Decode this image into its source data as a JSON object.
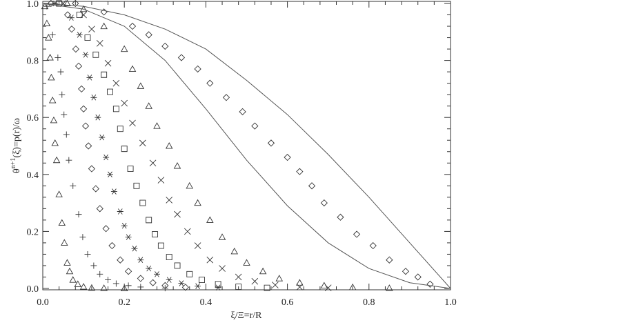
{
  "chart_data": {
    "type": "scatter",
    "xlabel": "ξ/Ξ=r/R",
    "ylabel": [
      "θ",
      "n+1",
      "(ξ)=p(r)/ω"
    ],
    "xlim": [
      0,
      1
    ],
    "ylim": [
      0,
      1
    ],
    "xticks": [
      {
        "value": 0,
        "label": "0.0"
      },
      {
        "value": 0.2,
        "label": "0.2"
      },
      {
        "value": 0.4,
        "label": "0.4"
      },
      {
        "value": 0.6,
        "label": "0.6"
      },
      {
        "value": 0.8,
        "label": "0.8"
      },
      {
        "value": 1,
        "label": "1.0"
      }
    ],
    "yticks": [
      {
        "value": 0,
        "label": "0.0"
      },
      {
        "value": 0.2,
        "label": "0.2"
      },
      {
        "value": 0.4,
        "label": "0.4"
      },
      {
        "value": 0.6,
        "label": "0.6"
      },
      {
        "value": 0.8,
        "label": "0.8"
      },
      {
        "value": 1,
        "label": "1.0"
      }
    ],
    "minor_per_major": 4,
    "series": [
      {
        "marker": "triangle",
        "color": "#333333",
        "x": [
          0.005,
          0.01,
          0.014,
          0.018,
          0.021,
          0.024,
          0.027,
          0.03,
          0.034,
          0.04,
          0.047,
          0.053,
          0.06,
          0.066,
          0.074,
          0.086,
          0.1,
          0.12,
          0.15,
          0.2
        ],
        "values": [
          0.99,
          0.93,
          0.88,
          0.81,
          0.74,
          0.66,
          0.59,
          0.51,
          0.45,
          0.33,
          0.23,
          0.16,
          0.09,
          0.06,
          0.03,
          0.015,
          0.006,
          0.002,
          0.001,
          0
        ]
      },
      {
        "marker": "plus",
        "color": "#333333",
        "x": [
          0.01,
          0.024,
          0.037,
          0.044,
          0.047,
          0.052,
          0.058,
          0.064,
          0.074,
          0.088,
          0.098,
          0.11,
          0.125,
          0.14,
          0.16,
          0.18,
          0.21,
          0.24,
          0.3
        ],
        "values": [
          0.99,
          0.89,
          0.81,
          0.76,
          0.68,
          0.61,
          0.54,
          0.45,
          0.36,
          0.26,
          0.18,
          0.12,
          0.08,
          0.05,
          0.03,
          0.017,
          0.01,
          0.005,
          0.001
        ]
      },
      {
        "marker": "diamond",
        "color": "#333333",
        "x": [
          0.02,
          0.061,
          0.071,
          0.081,
          0.088,
          0.095,
          0.1,
          0.105,
          0.112,
          0.12,
          0.13,
          0.14,
          0.155,
          0.17,
          0.19,
          0.21,
          0.24,
          0.27,
          0.3,
          0.35
        ],
        "values": [
          1.0,
          0.96,
          0.91,
          0.84,
          0.78,
          0.7,
          0.63,
          0.57,
          0.5,
          0.42,
          0.35,
          0.28,
          0.21,
          0.15,
          0.1,
          0.06,
          0.035,
          0.02,
          0.01,
          0.004
        ]
      },
      {
        "marker": "asterisk",
        "color": "#333333",
        "x": [
          0.03,
          0.07,
          0.09,
          0.105,
          0.115,
          0.125,
          0.135,
          0.145,
          0.155,
          0.165,
          0.175,
          0.19,
          0.2,
          0.21,
          0.225,
          0.24,
          0.26,
          0.28,
          0.31,
          0.34,
          0.38,
          0.43
        ],
        "values": [
          1.0,
          0.95,
          0.89,
          0.82,
          0.74,
          0.67,
          0.6,
          0.53,
          0.46,
          0.4,
          0.34,
          0.27,
          0.22,
          0.18,
          0.14,
          0.1,
          0.07,
          0.05,
          0.03,
          0.018,
          0.008,
          0.003
        ]
      },
      {
        "marker": "square",
        "color": "#333333",
        "x": [
          0.04,
          0.09,
          0.11,
          0.13,
          0.15,
          0.165,
          0.18,
          0.19,
          0.2,
          0.215,
          0.23,
          0.245,
          0.26,
          0.275,
          0.29,
          0.31,
          0.33,
          0.36,
          0.39,
          0.43,
          0.48,
          0.55
        ],
        "values": [
          1.0,
          0.96,
          0.88,
          0.82,
          0.75,
          0.69,
          0.63,
          0.56,
          0.49,
          0.42,
          0.36,
          0.3,
          0.24,
          0.19,
          0.15,
          0.11,
          0.08,
          0.05,
          0.03,
          0.015,
          0.006,
          0.002
        ]
      },
      {
        "marker": "cross",
        "color": "#333333",
        "x": [
          0.05,
          0.1,
          0.12,
          0.14,
          0.16,
          0.18,
          0.2,
          0.22,
          0.245,
          0.27,
          0.29,
          0.31,
          0.33,
          0.355,
          0.38,
          0.41,
          0.44,
          0.48,
          0.52,
          0.57,
          0.63,
          0.7
        ],
        "values": [
          1.0,
          0.96,
          0.91,
          0.86,
          0.79,
          0.72,
          0.65,
          0.58,
          0.51,
          0.44,
          0.38,
          0.31,
          0.26,
          0.2,
          0.15,
          0.1,
          0.07,
          0.04,
          0.025,
          0.012,
          0.005,
          0.002
        ]
      },
      {
        "marker": "triangle",
        "color": "#333333",
        "x": [
          0.06,
          0.1,
          0.15,
          0.2,
          0.22,
          0.24,
          0.26,
          0.28,
          0.31,
          0.33,
          0.36,
          0.38,
          0.41,
          0.44,
          0.47,
          0.5,
          0.54,
          0.58,
          0.63,
          0.69,
          0.76,
          0.85
        ],
        "values": [
          1.0,
          0.98,
          0.92,
          0.84,
          0.77,
          0.71,
          0.64,
          0.57,
          0.5,
          0.43,
          0.36,
          0.3,
          0.24,
          0.18,
          0.13,
          0.09,
          0.06,
          0.035,
          0.02,
          0.01,
          0.004,
          0.001
        ]
      },
      {
        "marker": "diamond",
        "color": "#333333",
        "x": [
          0.08,
          0.15,
          0.22,
          0.26,
          0.3,
          0.34,
          0.38,
          0.41,
          0.45,
          0.49,
          0.52,
          0.56,
          0.6,
          0.63,
          0.66,
          0.69,
          0.73,
          0.77,
          0.81,
          0.85,
          0.89,
          0.92,
          0.95
        ],
        "values": [
          1.0,
          0.97,
          0.92,
          0.89,
          0.85,
          0.81,
          0.77,
          0.72,
          0.67,
          0.62,
          0.57,
          0.51,
          0.46,
          0.41,
          0.36,
          0.3,
          0.25,
          0.19,
          0.15,
          0.1,
          0.06,
          0.04,
          0.015
        ]
      },
      {
        "marker": "line",
        "color": "#555555",
        "x": [
          0,
          0.1,
          0.2,
          0.3,
          0.4,
          0.5,
          0.6,
          0.7,
          0.8,
          0.9,
          1.0
        ],
        "values": [
          1,
          0.98,
          0.92,
          0.8,
          0.63,
          0.45,
          0.29,
          0.16,
          0.07,
          0.02,
          0
        ]
      },
      {
        "marker": "line",
        "color": "#555555",
        "x": [
          0,
          0.1,
          0.2,
          0.3,
          0.4,
          0.5,
          0.6,
          0.7,
          0.8,
          0.9,
          1.0
        ],
        "values": [
          1,
          0.99,
          0.96,
          0.91,
          0.84,
          0.73,
          0.61,
          0.47,
          0.32,
          0.16,
          0
        ]
      }
    ]
  }
}
